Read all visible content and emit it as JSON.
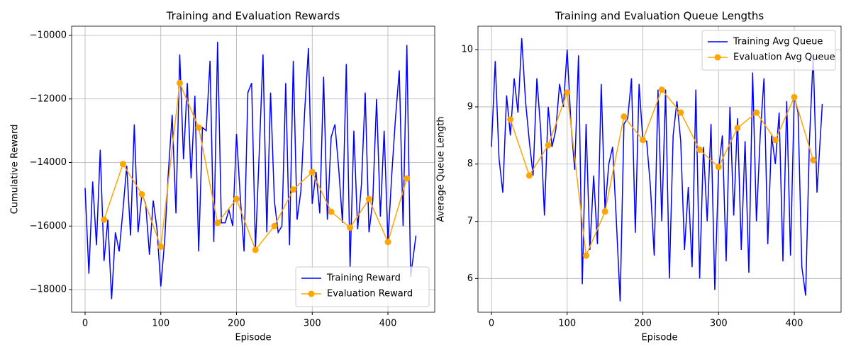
{
  "chart_data": [
    {
      "type": "line",
      "title": "Training and Evaluation Rewards",
      "x_label": "Episode",
      "y_label": "Cumulative Reward",
      "xlim": [
        -17.8,
        461.8
      ],
      "xticks": [
        0,
        100,
        200,
        300,
        400
      ],
      "ylim": [
        -18713,
        -9710
      ],
      "yticks": [
        {
          "value": -18000,
          "label": "−18000"
        },
        {
          "value": -16000,
          "label": "−16000"
        },
        {
          "value": -14000,
          "label": "−14000"
        },
        {
          "value": -12000,
          "label": "−12000"
        },
        {
          "value": -10000,
          "label": "−10000"
        }
      ],
      "grid": true,
      "legend": "lower right",
      "series": [
        {
          "name": "Training Reward",
          "color": "#0000ff",
          "x": [
            0,
            5,
            10,
            15,
            20,
            25,
            30,
            35,
            40,
            45,
            50,
            55,
            60,
            65,
            70,
            75,
            80,
            85,
            90,
            95,
            100,
            105,
            110,
            115,
            120,
            125,
            130,
            135,
            140,
            145,
            150,
            155,
            160,
            165,
            170,
            175,
            180,
            185,
            190,
            195,
            200,
            205,
            210,
            215,
            220,
            225,
            230,
            235,
            240,
            245,
            250,
            255,
            260,
            265,
            270,
            275,
            280,
            285,
            290,
            295,
            300,
            305,
            310,
            315,
            320,
            325,
            330,
            335,
            340,
            345,
            350,
            355,
            360,
            365,
            370,
            375,
            380,
            385,
            390,
            395,
            400,
            405,
            410,
            415,
            420,
            425,
            430,
            437
          ],
          "values": [
            -14800,
            -17500,
            -14600,
            -16600,
            -13600,
            -17100,
            -15800,
            -18300,
            -16200,
            -16800,
            -15500,
            -14100,
            -16300,
            -12800,
            -16200,
            -15000,
            -15300,
            -16900,
            -15200,
            -16100,
            -17900,
            -16500,
            -14300,
            -12500,
            -15600,
            -10600,
            -13900,
            -11500,
            -14500,
            -11900,
            -16800,
            -12900,
            -13000,
            -10800,
            -16500,
            -10200,
            -15900,
            -15900,
            -15500,
            -16000,
            -13100,
            -15100,
            -16800,
            -11800,
            -11500,
            -16700,
            -13700,
            -10600,
            -16200,
            -11800,
            -15200,
            -16200,
            -16000,
            -11500,
            -16600,
            -10800,
            -15800,
            -14900,
            -12400,
            -10400,
            -15300,
            -14300,
            -15600,
            -11300,
            -15800,
            -13200,
            -12800,
            -14200,
            -15900,
            -10900,
            -17300,
            -13000,
            -16100,
            -14700,
            -11800,
            -16200,
            -15200,
            -12000,
            -15700,
            -13000,
            -16500,
            -14400,
            -12600,
            -11100,
            -16000,
            -10300,
            -17600,
            -16300
          ]
        },
        {
          "name": "Evaluation Reward",
          "color": "#ffa500",
          "marker": "o",
          "x": [
            25,
            50,
            75,
            100,
            125,
            150,
            175,
            200,
            225,
            250,
            275,
            300,
            325,
            350,
            375,
            400,
            425
          ],
          "values": [
            -15800,
            -14050,
            -15000,
            -16650,
            -11500,
            -12900,
            -15900,
            -15150,
            -16750,
            -16000,
            -14850,
            -14300,
            -15550,
            -16050,
            -15150,
            -16500,
            -14500
          ]
        }
      ]
    },
    {
      "type": "line",
      "title": "Training and Evaluation Queue Lengths",
      "x_label": "Episode",
      "y_label": "Average Queue Length",
      "xlim": [
        -17.8,
        461.8
      ],
      "xticks": [
        0,
        100,
        200,
        300,
        400
      ],
      "ylim": [
        5.41,
        10.41
      ],
      "yticks": [
        6,
        7,
        8,
        9,
        10
      ],
      "grid": true,
      "legend": "upper right",
      "series": [
        {
          "name": "Training Avg Queue",
          "color": "#0000ff",
          "x": [
            0,
            5,
            10,
            15,
            20,
            25,
            30,
            35,
            40,
            45,
            50,
            55,
            60,
            65,
            70,
            75,
            80,
            85,
            90,
            95,
            100,
            105,
            110,
            115,
            120,
            125,
            130,
            135,
            140,
            145,
            150,
            155,
            160,
            165,
            170,
            175,
            180,
            185,
            190,
            195,
            200,
            205,
            210,
            215,
            220,
            225,
            230,
            235,
            240,
            245,
            250,
            255,
            260,
            265,
            270,
            275,
            280,
            285,
            290,
            295,
            300,
            305,
            310,
            315,
            320,
            325,
            330,
            335,
            340,
            345,
            350,
            355,
            360,
            365,
            370,
            375,
            380,
            385,
            390,
            395,
            400,
            405,
            410,
            415,
            420,
            425,
            430,
            437
          ],
          "values": [
            8.3,
            9.8,
            8.1,
            7.5,
            9.2,
            8.5,
            9.5,
            8.9,
            10.2,
            9.1,
            8.4,
            7.8,
            9.5,
            8.6,
            7.1,
            9.0,
            8.3,
            8.6,
            9.4,
            9.0,
            10.0,
            8.7,
            7.9,
            9.9,
            5.9,
            8.7,
            6.5,
            7.8,
            6.6,
            9.4,
            7.2,
            8.0,
            8.3,
            7.0,
            5.6,
            8.7,
            8.8,
            9.5,
            6.8,
            9.4,
            8.4,
            8.4,
            7.6,
            6.4,
            9.3,
            7.0,
            9.3,
            6.0,
            8.5,
            9.1,
            8.4,
            6.5,
            7.6,
            6.2,
            9.3,
            6.0,
            8.3,
            7.0,
            8.7,
            5.8,
            7.9,
            8.5,
            6.3,
            9.0,
            7.1,
            8.8,
            6.5,
            8.4,
            6.1,
            9.6,
            7.0,
            8.5,
            9.5,
            6.6,
            8.5,
            8.0,
            8.9,
            6.3,
            9.1,
            6.4,
            9.2,
            8.9,
            6.2,
            5.7,
            8.4,
            9.9,
            7.5,
            9.05
          ]
        },
        {
          "name": "Evaluation Avg Queue",
          "color": "#ffa500",
          "marker": "o",
          "x": [
            25,
            50,
            75,
            100,
            125,
            150,
            175,
            200,
            225,
            250,
            275,
            300,
            325,
            350,
            375,
            400,
            425
          ],
          "values": [
            8.78,
            7.8,
            8.33,
            9.25,
            6.4,
            7.17,
            8.83,
            8.42,
            9.3,
            8.9,
            8.25,
            7.95,
            8.63,
            8.9,
            8.42,
            9.17,
            8.07
          ]
        }
      ]
    }
  ]
}
